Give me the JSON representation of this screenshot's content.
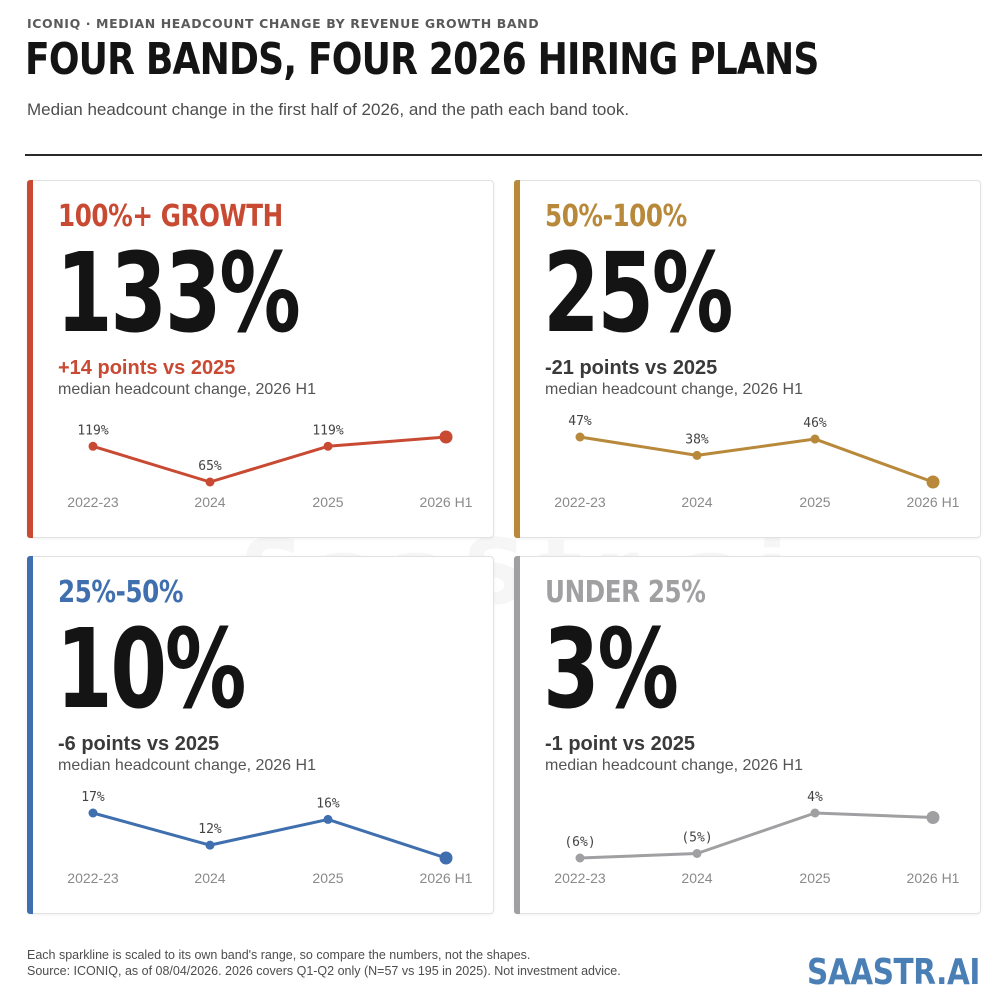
{
  "header": {
    "eyebrow": "ICONIQ · MEDIAN HEADCOUNT CHANGE BY REVENUE GROWTH BAND",
    "title": "FOUR BANDS, FOUR 2026 HIRING PLANS",
    "subtitle": "Median headcount change in the first half of 2026, and the path each band took."
  },
  "watermark": "SaaStr.ai",
  "footer": {
    "note_1": "Each sparkline is scaled to its own band's range, so compare the numbers, not the shapes.",
    "note_2": "Source: ICONIQ, as of 08/04/2026. 2026 covers Q1-Q2 only (N=57 vs 195 in 2025). Not investment advice.",
    "brand": "SAASTR.AI"
  },
  "chart_data": [
    {
      "type": "line",
      "band": "100%+ GROWTH",
      "headline": "133%",
      "delta": "+14 points vs 2025",
      "description": "median headcount change, 2026 H1",
      "color": "#c94a33",
      "categories": [
        "2022-23",
        "2024",
        "2025",
        "2026 H1"
      ],
      "values": [
        119,
        65,
        119,
        133
      ],
      "point_labels": [
        "119%",
        "65%",
        "119%",
        ""
      ]
    },
    {
      "type": "line",
      "band": "50%-100%",
      "headline": "25%",
      "delta": "-21 points vs 2025",
      "description": "median headcount change, 2026 H1",
      "color": "#b8893a",
      "categories": [
        "2022-23",
        "2024",
        "2025",
        "2026 H1"
      ],
      "values": [
        47,
        38,
        46,
        25
      ],
      "point_labels": [
        "47%",
        "38%",
        "46%",
        ""
      ]
    },
    {
      "type": "line",
      "band": "25%-50%",
      "headline": "10%",
      "delta": "-6 points vs 2025",
      "description": "median headcount change, 2026 H1",
      "color": "#3f6fae",
      "categories": [
        "2022-23",
        "2024",
        "2025",
        "2026 H1"
      ],
      "values": [
        17,
        12,
        16,
        10
      ],
      "point_labels": [
        "17%",
        "12%",
        "16%",
        ""
      ]
    },
    {
      "type": "line",
      "band": "UNDER 25%",
      "headline": "3%",
      "delta": "-1 point vs 2025",
      "description": "median headcount change, 2026 H1",
      "color": "#a0a0a3",
      "categories": [
        "2022-23",
        "2024",
        "2025",
        "2026 H1"
      ],
      "values": [
        -6,
        -5,
        4,
        3
      ],
      "point_labels": [
        "(6%)",
        "(5%)",
        "4%",
        ""
      ]
    }
  ]
}
